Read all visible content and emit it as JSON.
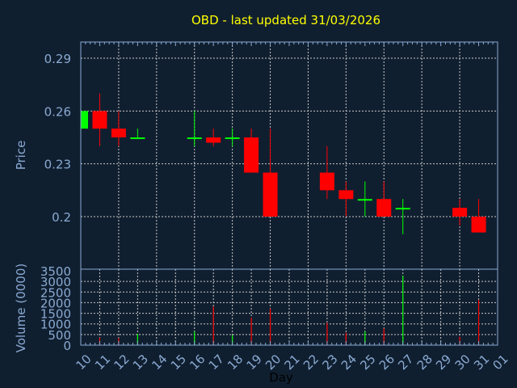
{
  "chart_data": {
    "type": "candlestick",
    "title": "OBD - last updated 31/03/2026",
    "xlabel": "Day",
    "price_ylabel": "Price",
    "volume_ylabel": "Volume (0000)",
    "x_ticks": [
      "10",
      "11",
      "12",
      "13",
      "14",
      "15",
      "16",
      "17",
      "18",
      "19",
      "20",
      "21",
      "22",
      "23",
      "24",
      "25",
      "26",
      "27",
      "28",
      "29",
      "30",
      "31",
      "01"
    ],
    "price_ticks": [
      "0.29",
      "0.26",
      "0.23",
      "0.2"
    ],
    "price_tick_values": [
      0.29,
      0.26,
      0.23,
      0.2
    ],
    "price_ylim": [
      0.1835,
      0.2995
    ],
    "volume_ticks": [
      "3500",
      "3000",
      "2500",
      "2000",
      "1500",
      "1000",
      "500",
      "0"
    ],
    "volume_ylim": [
      0,
      3500
    ],
    "grid": true,
    "candles": [
      {
        "day": "10",
        "open": 0.25,
        "high": 0.26,
        "low": 0.25,
        "close": 0.26,
        "volume": 0
      },
      {
        "day": "11",
        "open": 0.26,
        "high": 0.27,
        "low": 0.24,
        "close": 0.25,
        "volume": 350
      },
      {
        "day": "12",
        "open": 0.25,
        "high": 0.26,
        "low": 0.24,
        "close": 0.245,
        "volume": 330
      },
      {
        "day": "13",
        "open": 0.245,
        "high": 0.25,
        "low": 0.244,
        "close": 0.245,
        "volume": 530
      },
      {
        "day": "16",
        "open": 0.245,
        "high": 0.26,
        "low": 0.24,
        "close": 0.245,
        "volume": 650
      },
      {
        "day": "17",
        "open": 0.245,
        "high": 0.25,
        "low": 0.24,
        "close": 0.242,
        "volume": 1820
      },
      {
        "day": "18",
        "open": 0.245,
        "high": 0.25,
        "low": 0.24,
        "close": 0.245,
        "volume": 470
      },
      {
        "day": "19",
        "open": 0.245,
        "high": 0.25,
        "low": 0.225,
        "close": 0.225,
        "volume": 1300
      },
      {
        "day": "20",
        "open": 0.225,
        "high": 0.25,
        "low": 0.2,
        "close": 0.2,
        "volume": 1720
      },
      {
        "day": "23",
        "open": 0.225,
        "high": 0.24,
        "low": 0.21,
        "close": 0.215,
        "volume": 1050
      },
      {
        "day": "24",
        "open": 0.215,
        "high": 0.22,
        "low": 0.2,
        "close": 0.21,
        "volume": 580
      },
      {
        "day": "25",
        "open": 0.21,
        "high": 0.22,
        "low": 0.2,
        "close": 0.21,
        "volume": 650
      },
      {
        "day": "26",
        "open": 0.21,
        "high": 0.22,
        "low": 0.2,
        "close": 0.2,
        "volume": 780
      },
      {
        "day": "27",
        "open": 0.205,
        "high": 0.21,
        "low": 0.19,
        "close": 0.205,
        "volume": 3270
      },
      {
        "day": "30",
        "open": 0.205,
        "high": 0.21,
        "low": 0.195,
        "close": 0.2,
        "volume": 400
      },
      {
        "day": "31",
        "open": 0.2,
        "high": 0.21,
        "low": 0.191,
        "close": 0.191,
        "volume": 2130
      }
    ],
    "colors": {
      "up": "#00ff00",
      "down": "#ff0000",
      "background": "#101f30",
      "axis": "#8aaad2",
      "title": "#ffff00",
      "grid": "#c8c8c8"
    }
  }
}
